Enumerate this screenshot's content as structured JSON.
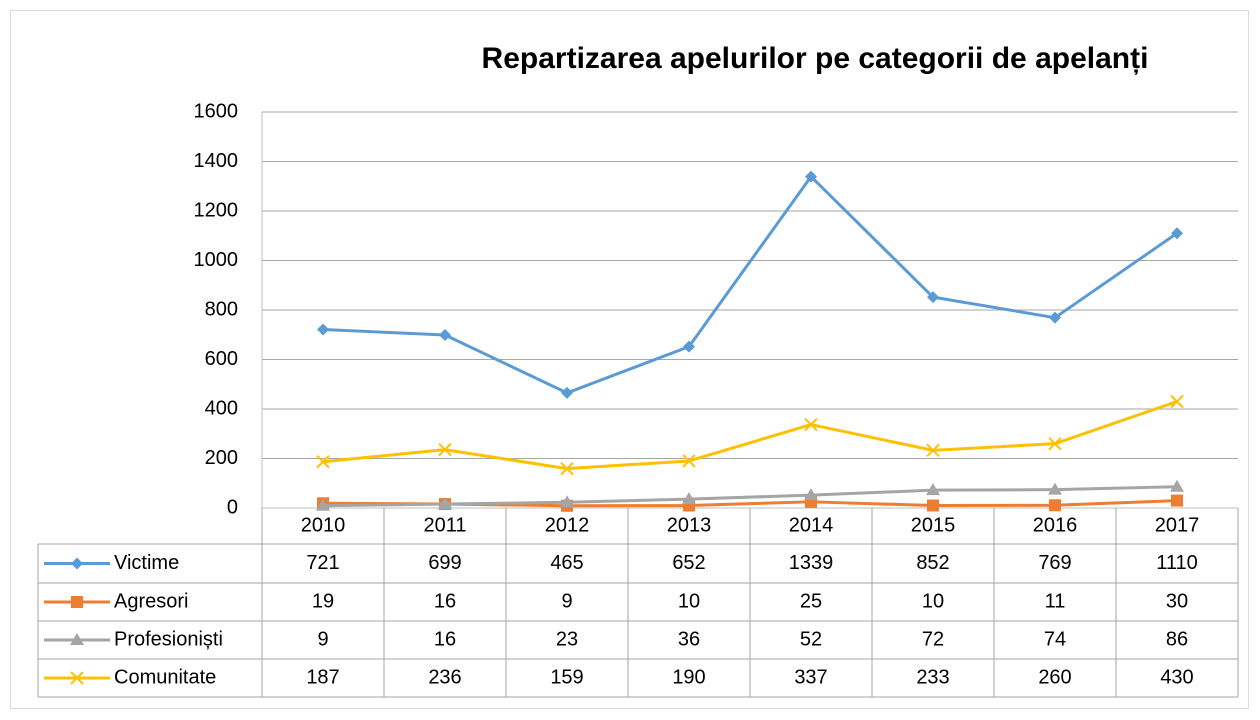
{
  "chart_data": {
    "type": "line",
    "title": "Repartizarea apelurilor pe categorii de apelanți",
    "categories": [
      "2010",
      "2011",
      "2012",
      "2013",
      "2014",
      "2015",
      "2016",
      "2017"
    ],
    "series": [
      {
        "name": "Victime",
        "color": "#5b9bd5",
        "marker": "diamond",
        "values": [
          721,
          699,
          465,
          652,
          1339,
          852,
          769,
          1110
        ]
      },
      {
        "name": "Agresori",
        "color": "#ed7d31",
        "marker": "square",
        "values": [
          19,
          16,
          9,
          10,
          25,
          10,
          11,
          30
        ]
      },
      {
        "name": "Profesioniști",
        "color": "#a5a5a5",
        "marker": "triangle",
        "values": [
          9,
          16,
          23,
          36,
          52,
          72,
          74,
          86
        ]
      },
      {
        "name": "Comunitate",
        "color": "#ffc000",
        "marker": "x",
        "values": [
          187,
          236,
          159,
          190,
          337,
          233,
          260,
          430
        ]
      }
    ],
    "ylim": [
      0,
      1600
    ],
    "yticks": [
      0,
      200,
      400,
      600,
      800,
      1000,
      1200,
      1400,
      1600
    ],
    "grid": true,
    "data_table": true
  }
}
